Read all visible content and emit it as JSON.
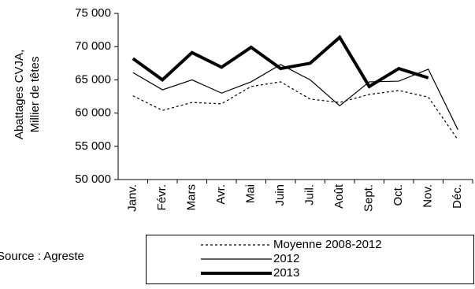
{
  "chart_data": {
    "type": "line",
    "y_label": [
      "Abattages CVJA,",
      "Millier de têtes"
    ],
    "source": "Source : Agreste",
    "categories": [
      "Janv.",
      "Févr.",
      "Mars",
      "Avr.",
      "Mai",
      "Juin",
      "Juil.",
      "Août",
      "Sept.",
      "Oct.",
      "Nov.",
      "Déc."
    ],
    "ylim": [
      50000,
      75000
    ],
    "yticks": [
      {
        "value": 50000,
        "label": "50 000"
      },
      {
        "value": 55000,
        "label": "55 000"
      },
      {
        "value": 60000,
        "label": "60 000"
      },
      {
        "value": 65000,
        "label": "65 000"
      },
      {
        "value": 70000,
        "label": "70 000"
      },
      {
        "value": 75000,
        "label": "75 000"
      }
    ],
    "series": [
      {
        "name": "Moyenne 2008-2012",
        "color": "#000000",
        "width": 1.2,
        "dash": "3 3",
        "values": [
          62600,
          60400,
          61600,
          61400,
          64000,
          64700,
          62100,
          61600,
          62800,
          63400,
          62400,
          56000
        ]
      },
      {
        "name": "2012",
        "color": "#000000",
        "width": 1.2,
        "dash": "none",
        "values": [
          66100,
          63500,
          65000,
          63000,
          64700,
          67300,
          65000,
          61100,
          64700,
          64800,
          66600,
          57500
        ]
      },
      {
        "name": "2013",
        "color": "#000000",
        "width": 4,
        "dash": "none",
        "values": [
          68200,
          65000,
          69100,
          66900,
          69900,
          66700,
          67500,
          71400,
          64000,
          66700,
          65300,
          null
        ]
      }
    ]
  }
}
